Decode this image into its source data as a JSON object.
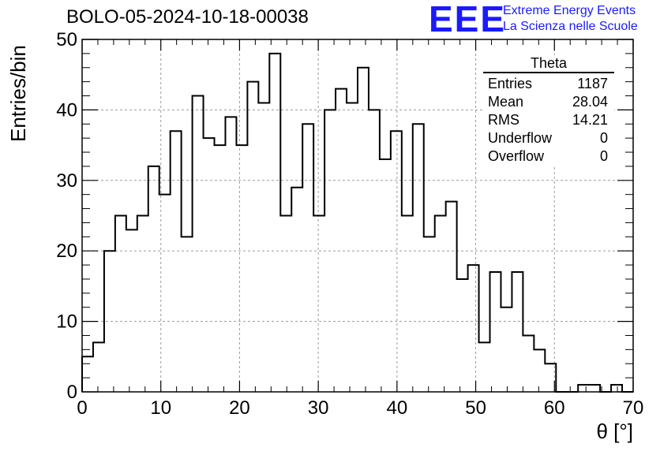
{
  "header": {
    "title": "BOLO-05-2024-10-18-00038",
    "logo_mark": "EEE",
    "logo_line1": "Extreme Energy Events",
    "logo_line2": "La Scienza nelle Scuole",
    "logo_color": "#1a1aff"
  },
  "stats_box": {
    "name": "Theta",
    "rows": [
      {
        "label": "Entries",
        "value": "1187"
      },
      {
        "label": "Mean",
        "value": "28.04"
      },
      {
        "label": "RMS",
        "value": "14.21"
      },
      {
        "label": "Underflow",
        "value": "0"
      },
      {
        "label": "Overflow",
        "value": "0"
      }
    ]
  },
  "chart_data": {
    "type": "bar",
    "title": "BOLO-05-2024-10-18-00038",
    "xlabel": "θ [°]",
    "ylabel": "Entries/bin",
    "xlim": [
      0,
      70
    ],
    "ylim": [
      0,
      50
    ],
    "bin_width": 1.4,
    "grid": true,
    "xticks": [
      "0",
      "10",
      "20",
      "30",
      "40",
      "50",
      "60",
      "70"
    ],
    "yticks": [
      "0",
      "10",
      "20",
      "30",
      "40",
      "50"
    ],
    "series": [
      {
        "values": [
          5,
          7,
          20,
          25,
          23,
          25,
          32,
          28,
          37,
          22,
          42,
          36,
          35,
          39,
          35,
          44,
          41,
          48,
          25,
          29,
          38,
          25,
          40,
          43,
          41,
          46,
          40,
          33,
          37,
          25,
          38,
          22,
          25,
          27,
          16,
          18,
          7,
          17,
          12,
          17,
          8,
          6,
          4,
          0,
          0,
          1,
          1,
          0,
          1,
          0
        ]
      }
    ]
  }
}
